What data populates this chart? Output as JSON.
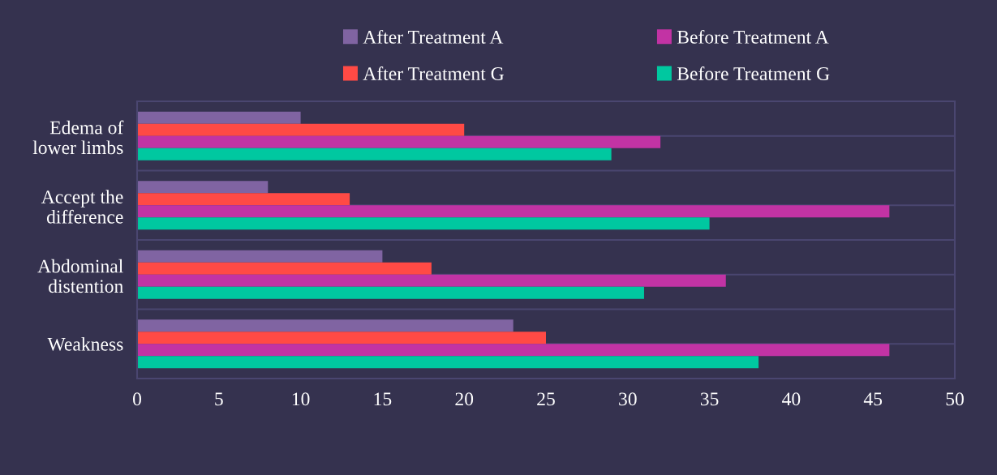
{
  "chart_data": {
    "type": "bar",
    "orientation": "horizontal",
    "categories": [
      "Edema of\nlower limbs",
      "Accept the\ndifference",
      "Abdominal\ndistention",
      "Weakness"
    ],
    "series": [
      {
        "name": "After Treatment A",
        "color": "#8064a2",
        "values": [
          10,
          8,
          15,
          23
        ]
      },
      {
        "name": "After Treatment G",
        "color": "#ff4a45",
        "values": [
          20,
          13,
          18,
          25
        ]
      },
      {
        "name": "Before Treatment A",
        "color": "#c233a4",
        "values": [
          32,
          46,
          36,
          46
        ]
      },
      {
        "name": "Before Treatment G",
        "color": "#00c8a0",
        "values": [
          29,
          35,
          31,
          38
        ]
      }
    ],
    "xlim": [
      0,
      50
    ],
    "xticks": [
      0,
      5,
      10,
      15,
      20,
      25,
      30,
      35,
      40,
      45,
      50
    ],
    "grid": "y",
    "legend": "top"
  }
}
